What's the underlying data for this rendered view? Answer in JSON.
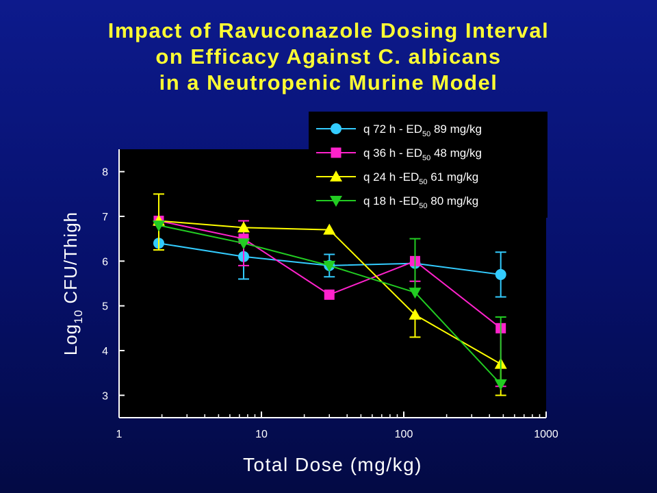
{
  "slide": {
    "title_lines": [
      "Impact of Ravuconazole Dosing Interval",
      "on Efficacy Against C. albicans",
      "in a Neutropenic Murine Model"
    ]
  },
  "colors": {
    "background": "#0b1580",
    "title": "#ffff33",
    "plot_background": "#000000",
    "axis": "#ffffff"
  },
  "chart_data": {
    "type": "line",
    "title": "Impact of Ravuconazole Dosing Interval on Efficacy Against C. albicans in a Neutropenic Murine Model",
    "xlabel": "Total Dose (mg/kg)",
    "ylabel_prefix": "Log",
    "ylabel_subscript": "10",
    "ylabel_suffix": " CFU/Thigh",
    "x_scale": "log",
    "xlim": [
      1,
      1000
    ],
    "ylim": [
      2.5,
      8.5
    ],
    "x_ticks": [
      {
        "value": 1,
        "label": "1"
      },
      {
        "value": 10,
        "label": "10"
      },
      {
        "value": 100,
        "label": "100"
      },
      {
        "value": 1000,
        "label": "1000"
      }
    ],
    "y_ticks": [
      {
        "value": 3,
        "label": "3"
      },
      {
        "value": 4,
        "label": "4"
      },
      {
        "value": 5,
        "label": "5"
      },
      {
        "value": 6,
        "label": "6"
      },
      {
        "value": 7,
        "label": "7"
      },
      {
        "value": 8,
        "label": "8"
      }
    ],
    "grid": false,
    "legend_position": "top-right",
    "series": [
      {
        "name_parts": [
          "q 72 h - ED",
          "50",
          " 89 mg/kg"
        ],
        "color": "#33ccff",
        "marker": "circle",
        "x": [
          1.9,
          7.5,
          30,
          120,
          480
        ],
        "y": [
          6.4,
          6.1,
          5.9,
          5.95,
          5.7
        ],
        "err_up": [
          0,
          0,
          0.25,
          0,
          0.5
        ],
        "err_down": [
          0,
          0.5,
          0.25,
          0,
          0.5
        ]
      },
      {
        "name_parts": [
          "q 36 h - ED",
          "50",
          " 48 mg/kg"
        ],
        "color": "#ff22cc",
        "marker": "square",
        "x": [
          1.9,
          7.5,
          30,
          120,
          480
        ],
        "y": [
          6.9,
          6.5,
          5.25,
          6.0,
          4.5
        ],
        "err_up": [
          0,
          0.4,
          0,
          0,
          0
        ],
        "err_down": [
          0,
          0.6,
          0,
          0.45,
          1.3
        ]
      },
      {
        "name_parts": [
          "q 24 h -ED",
          "50",
          " 61 mg/kg"
        ],
        "color": "#ffff00",
        "marker": "triangle-up",
        "x": [
          1.9,
          7.5,
          30,
          120,
          480
        ],
        "y": [
          6.9,
          6.75,
          6.7,
          4.8,
          3.7
        ],
        "err_up": [
          0.6,
          0,
          0,
          0,
          0
        ],
        "err_down": [
          0.65,
          0,
          0,
          0.5,
          0.7
        ]
      },
      {
        "name_parts": [
          "q 18 h -ED",
          "50",
          " 80 mg/kg"
        ],
        "color": "#22cc22",
        "marker": "triangle-down",
        "x": [
          1.9,
          7.5,
          30,
          120,
          480
        ],
        "y": [
          6.8,
          6.4,
          5.9,
          5.3,
          3.25
        ],
        "err_up": [
          0,
          0,
          0,
          1.2,
          1.5
        ],
        "err_down": [
          0,
          0,
          0,
          0,
          0
        ]
      }
    ]
  }
}
